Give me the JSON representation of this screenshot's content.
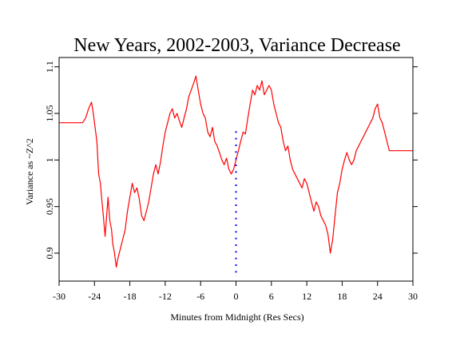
{
  "chart_data": {
    "type": "line",
    "title": "New Years, 2002-2003, Variance Decrease",
    "xlabel": "Minutes from Midnight (Res Secs)",
    "ylabel": "Variance as ~Z^2",
    "xlim": [
      -30,
      30
    ],
    "ylim": [
      0.87,
      1.11
    ],
    "x_ticks": [
      -30,
      -24,
      -18,
      -12,
      -6,
      0,
      6,
      12,
      18,
      24,
      30
    ],
    "x_tick_labels": [
      "-30",
      "-24",
      "-18",
      "-12",
      "-6",
      "0",
      "6",
      "12",
      "18",
      "24",
      "30"
    ],
    "y_ticks": [
      0.9,
      0.95,
      1.0,
      1.05,
      1.1
    ],
    "y_tick_labels": [
      "0.9",
      "0.95",
      "1",
      "1.05",
      "1.1"
    ],
    "grid": false,
    "colors": {
      "series": "#ff0000",
      "marker": "#0000ff",
      "axes": "#000000",
      "frame": "#000000"
    },
    "series": [
      {
        "color": "#ff0000",
        "style": "line",
        "x": [
          -30,
          -26,
          -25.5,
          -25,
          -24.5,
          -24.2,
          -24,
          -23.6,
          -23.3,
          -23,
          -22.8,
          -22.5,
          -22.2,
          -22,
          -21.7,
          -21.4,
          -21.1,
          -20.9,
          -20.6,
          -20.3,
          -20,
          -19.6,
          -19.2,
          -18.8,
          -18.4,
          -18,
          -17.6,
          -17.2,
          -16.8,
          -16.4,
          -16,
          -15.6,
          -15.2,
          -14.8,
          -14.4,
          -14,
          -13.6,
          -13.2,
          -12.8,
          -12.4,
          -12,
          -11.6,
          -11.2,
          -10.8,
          -10.4,
          -10,
          -9.6,
          -9.2,
          -8.8,
          -8.4,
          -8,
          -7.6,
          -7.2,
          -6.8,
          -6.4,
          -6,
          -5.6,
          -5.2,
          -4.8,
          -4.4,
          -4,
          -3.6,
          -3.2,
          -2.8,
          -2.4,
          -2,
          -1.6,
          -1.2,
          -0.8,
          -0.4,
          0,
          0.4,
          0.8,
          1.2,
          1.6,
          2,
          2.4,
          2.8,
          3.2,
          3.6,
          4,
          4.4,
          4.8,
          5.2,
          5.6,
          6,
          6.4,
          6.8,
          7.2,
          7.6,
          8,
          8.4,
          8.8,
          9.2,
          9.6,
          10,
          10.4,
          10.8,
          11.2,
          11.6,
          12,
          12.4,
          12.8,
          13.2,
          13.6,
          14,
          14.4,
          14.8,
          15.2,
          15.6,
          16,
          16.4,
          16.8,
          17.2,
          17.6,
          18,
          18.4,
          18.8,
          19.2,
          19.6,
          20,
          20.4,
          20.8,
          21.2,
          21.6,
          22,
          22.4,
          22.8,
          23.2,
          23.6,
          24,
          24.4,
          24.8,
          25.2,
          25.6,
          26,
          30
        ],
        "y": [
          1.04,
          1.04,
          1.045,
          1.055,
          1.062,
          1.05,
          1.04,
          1.02,
          0.985,
          0.975,
          0.96,
          0.94,
          0.918,
          0.935,
          0.96,
          0.935,
          0.925,
          0.91,
          0.9,
          0.885,
          0.895,
          0.905,
          0.915,
          0.925,
          0.945,
          0.96,
          0.975,
          0.965,
          0.97,
          0.958,
          0.94,
          0.935,
          0.945,
          0.955,
          0.97,
          0.985,
          0.995,
          0.985,
          0.998,
          1.015,
          1.03,
          1.04,
          1.05,
          1.055,
          1.045,
          1.05,
          1.042,
          1.035,
          1.045,
          1.055,
          1.068,
          1.075,
          1.082,
          1.09,
          1.075,
          1.06,
          1.05,
          1.045,
          1.03,
          1.025,
          1.035,
          1.02,
          1.015,
          1.008,
          1.0,
          0.995,
          1.002,
          0.99,
          0.985,
          0.99,
          1.0,
          1.01,
          1.02,
          1.03,
          1.028,
          1.045,
          1.06,
          1.075,
          1.07,
          1.08,
          1.075,
          1.085,
          1.07,
          1.075,
          1.08,
          1.075,
          1.06,
          1.05,
          1.04,
          1.035,
          1.02,
          1.01,
          1.015,
          1.0,
          0.99,
          0.985,
          0.98,
          0.975,
          0.97,
          0.98,
          0.975,
          0.965,
          0.955,
          0.945,
          0.955,
          0.95,
          0.94,
          0.935,
          0.93,
          0.92,
          0.9,
          0.915,
          0.94,
          0.965,
          0.975,
          0.99,
          1.0,
          1.008,
          1.0,
          0.995,
          1.0,
          1.01,
          1.015,
          1.02,
          1.025,
          1.03,
          1.035,
          1.04,
          1.045,
          1.055,
          1.06,
          1.045,
          1.04,
          1.03,
          1.02,
          1.01,
          1.01
        ]
      },
      {
        "color": "#0000ff",
        "style": "dotted",
        "x": [
          0,
          0
        ],
        "y": [
          0.88,
          1.03
        ]
      }
    ]
  }
}
